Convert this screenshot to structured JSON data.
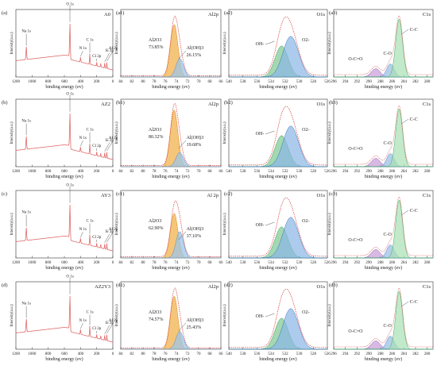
{
  "figure": {
    "rows": [
      {
        "survey": {
          "tag": "(a)",
          "sample": "A0",
          "peaks": [
            "O 1s",
            "Na 1s",
            "C 1s",
            "N 1s",
            "Si 2p",
            "Al 2p",
            "Cl 2p"
          ]
        },
        "al": {
          "tag": "(a1)",
          "title": "Al2p",
          "p1": "Al2O3",
          "v1": "73.85%",
          "p2": "Al(OH)3",
          "v2": "26.15%"
        },
        "o": {
          "tag": "(a2)",
          "title": "O1s",
          "l1": "OH-",
          "l2": "O2-"
        },
        "c": {
          "tag": "(a3)",
          "title": "C1s",
          "l1": "C-C",
          "l2": "C-O",
          "l3": "O-C=O"
        }
      },
      {
        "survey": {
          "tag": "(b)",
          "sample": "AZ2",
          "peaks": [
            "O 1s",
            "Na 1s",
            "C 1s",
            "N 1s",
            "Si 2p",
            "Al 2p",
            "Cl 2p"
          ]
        },
        "al": {
          "tag": "(b1)",
          "title": "Al2p",
          "p1": "Al2O3",
          "v1": "80.32%",
          "p2": "Al(OH)3",
          "v2": "19.68%"
        },
        "o": {
          "tag": "(b2)",
          "title": "O1s",
          "l1": "OH-",
          "l2": "O2-"
        },
        "c": {
          "tag": "(b3)",
          "title": "C1s",
          "l1": "C-C",
          "l2": "C-O",
          "l3": "O-C=O"
        }
      },
      {
        "survey": {
          "tag": "(c)",
          "sample": "AY3",
          "peaks": [
            "O 1s",
            "Na 1s",
            "C 1s",
            "N 1s",
            "Si 2p",
            "Al 2p",
            "Cl 2p"
          ]
        },
        "al": {
          "tag": "(c1)",
          "title": "Al 2p",
          "p1": "Al2O3",
          "v1": "62.90%",
          "p2": "Al(OH)3",
          "v2": "37.10%"
        },
        "o": {
          "tag": "(c2)",
          "title": "O1s",
          "l1": "OH-",
          "l2": "O2-"
        },
        "c": {
          "tag": "(c3)",
          "title": "C1s",
          "l1": "C-C",
          "l2": "C-O",
          "l3": "O-C=O"
        }
      },
      {
        "survey": {
          "tag": "(d)",
          "sample": "AZ2Y3",
          "peaks": [
            "O 1s",
            "Na 1s",
            "C 1s",
            "N 1s",
            "Si 2p",
            "Al 2p",
            "Cl 2p"
          ]
        },
        "al": {
          "tag": "(d1)",
          "title": "Al2p",
          "p1": "Al2O3",
          "v1": "74.57%",
          "p2": "Al(OH)3",
          "v2": "25.43%"
        },
        "o": {
          "tag": "(d2)",
          "title": "O1s",
          "l1": "OH-",
          "l2": "O2-"
        },
        "c": {
          "tag": "(d3)",
          "title": "C1s",
          "l1": "C-C",
          "l2": "C-O",
          "l3": "O-C=O"
        }
      }
    ],
    "xlabel": "binding energy (ev)",
    "ylabel": "Intensity(a.u.)"
  },
  "chart_data": [
    {
      "type": "line",
      "panel": "survey",
      "xlabel": "binding energy (ev)",
      "ylabel": "Intensity(a.u.)",
      "xticks": [
        1200,
        1000,
        800,
        600,
        400,
        200,
        0
      ],
      "xlim": [
        1200,
        0
      ],
      "x": [
        1200,
        1071,
        1000,
        800,
        600,
        531,
        400,
        285,
        200,
        150,
        101,
        74,
        0
      ],
      "y": [
        0.18,
        0.45,
        0.3,
        0.32,
        0.42,
        1.0,
        0.28,
        0.42,
        0.3,
        0.34,
        0.33,
        0.36,
        0.1
      ]
    },
    {
      "type": "line",
      "panel": "Al2p",
      "xlabel": "binding energy (ev)",
      "ylabel": "Intensity(a.u.)",
      "xticks": [
        84,
        82,
        80,
        78,
        76,
        74,
        72,
        70,
        68,
        66
      ],
      "xlim": [
        84,
        66
      ],
      "series": [
        {
          "center": 74.4,
          "fwhm": 1.6
        },
        {
          "center": 73.4,
          "fwhm": 1.6
        }
      ]
    },
    {
      "type": "line",
      "panel": "O1s",
      "xlabel": "binding energy (ev)",
      "ylabel": "Intensity(a.u.)",
      "xticks": [
        540,
        538,
        536,
        534,
        532,
        530,
        528,
        526
      ],
      "xlim": [
        540,
        526
      ],
      "series": [
        {
          "center": 532.5,
          "fwhm": 2.2
        },
        {
          "center": 531.2,
          "fwhm": 2.6
        }
      ]
    },
    {
      "type": "line",
      "panel": "C1s",
      "xlabel": "binding energy (ev)",
      "ylabel": "Intensity(a.u.)",
      "xticks": [
        296,
        294,
        292,
        290,
        288,
        286,
        284,
        282,
        280
      ],
      "xlim": [
        296,
        279
      ],
      "series": [
        {
          "center": 284.8,
          "fwhm": 1.4
        },
        {
          "center": 286.3,
          "fwhm": 1.5
        },
        {
          "center": 288.8,
          "fwhm": 1.8
        }
      ]
    }
  ]
}
